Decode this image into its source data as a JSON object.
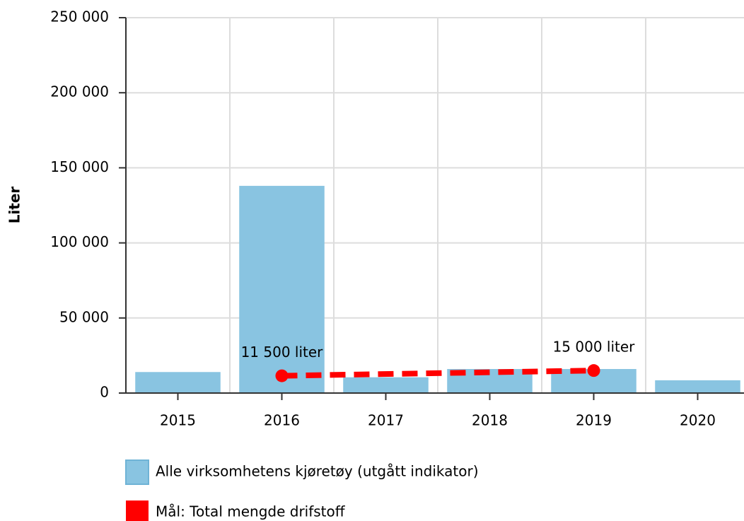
{
  "chart_data": {
    "type": "bar",
    "y_label": "Liter",
    "categories": [
      "2015",
      "2016",
      "2017",
      "2018",
      "2019",
      "2020"
    ],
    "series": [
      {
        "name": "Alle virksomhetens kjøretøy (utgått indikator)",
        "type": "bar",
        "color": "#89c4e1",
        "values": [
          14000,
          138000,
          10500,
          16000,
          16000,
          8500
        ]
      },
      {
        "name": "Mål: Total mengde drifstoff",
        "type": "line",
        "color": "#ff0000",
        "x": [
          "2016",
          "2019"
        ],
        "values": [
          11500,
          15000
        ],
        "value_labels": [
          "11 500 liter",
          "15 000 liter"
        ]
      }
    ],
    "ylim": [
      0,
      250000
    ],
    "yticks": [
      0,
      {
        "value": 50000,
        "label": "50 000"
      },
      {
        "value": 100000,
        "label": "100 000"
      },
      {
        "value": 150000,
        "label": "150 000"
      },
      {
        "value": 200000,
        "label": "200 000"
      },
      {
        "value": 250000,
        "label": "250 000"
      }
    ],
    "grid": true
  }
}
